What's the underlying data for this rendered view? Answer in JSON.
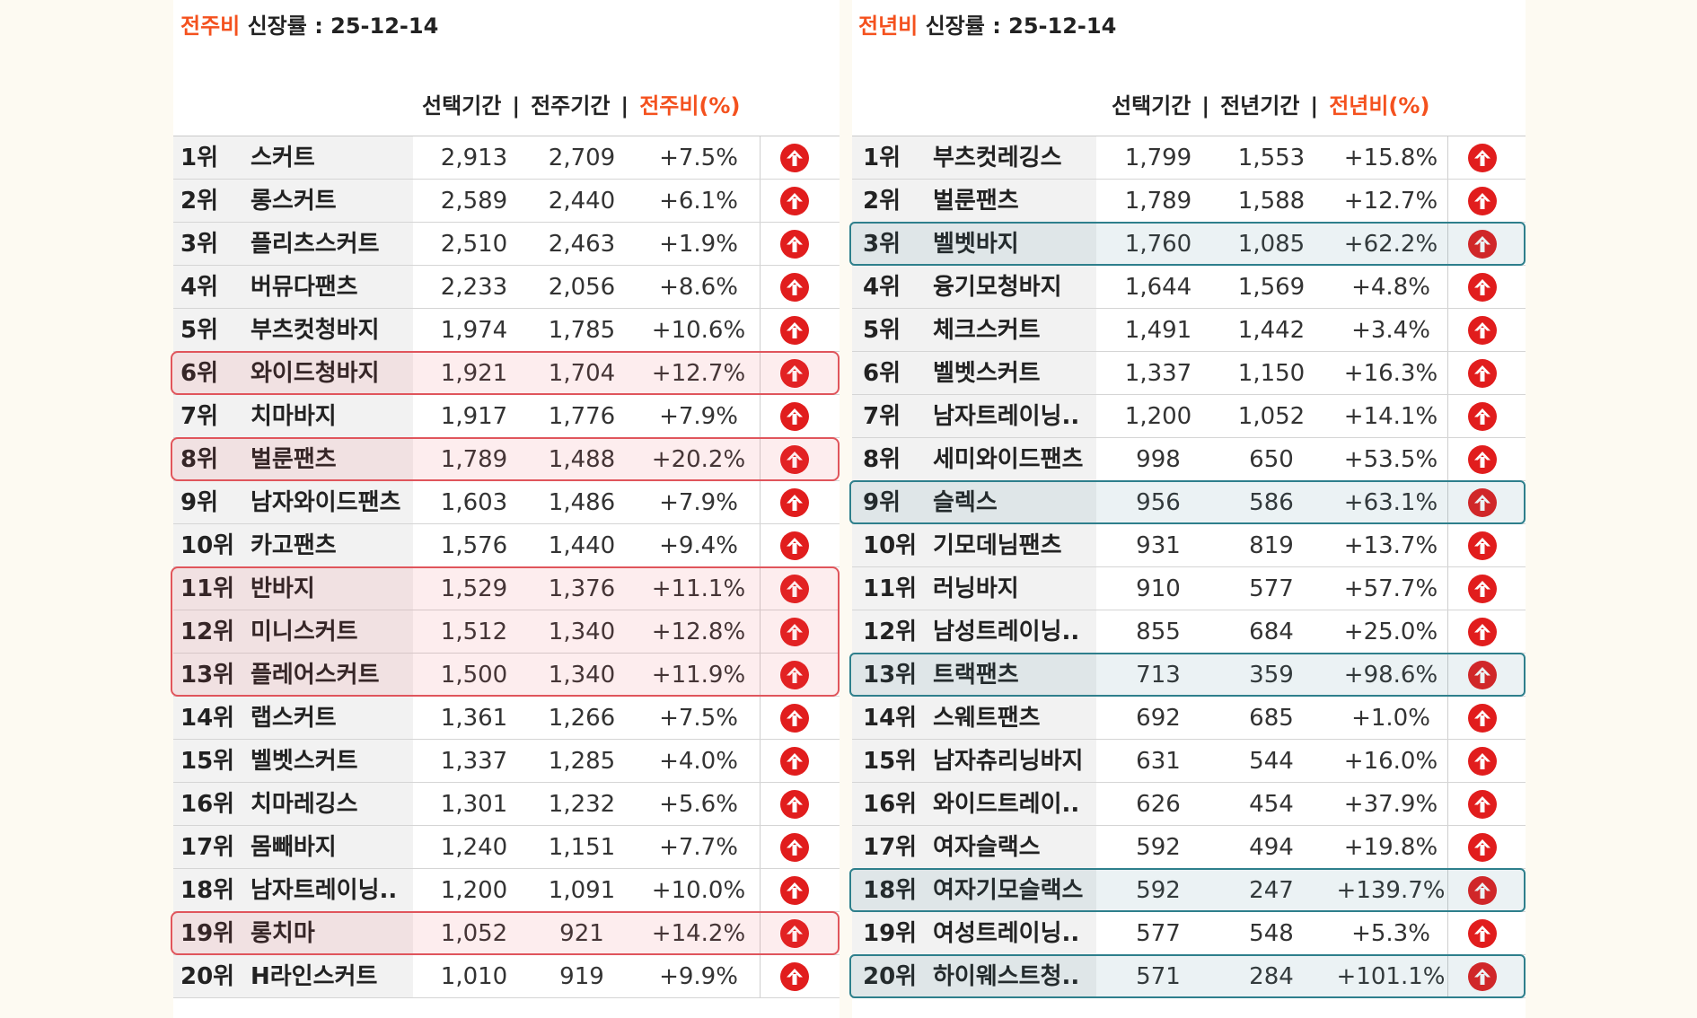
{
  "left": {
    "title_accent": "전주비",
    "title_text": " 신장률 : 25-12-14",
    "col_selected": "선택기간",
    "col_compare": "전주기간",
    "col_ratio": "전주비(%)",
    "sep": "|",
    "rows": [
      {
        "rank": "1위",
        "name": "스커트",
        "selected": "2,913",
        "compare": "2,709",
        "ratio": "+7.5%"
      },
      {
        "rank": "2위",
        "name": "롱스커트",
        "selected": "2,589",
        "compare": "2,440",
        "ratio": "+6.1%"
      },
      {
        "rank": "3위",
        "name": "플리츠스커트",
        "selected": "2,510",
        "compare": "2,463",
        "ratio": "+1.9%"
      },
      {
        "rank": "4위",
        "name": "버뮤다팬츠",
        "selected": "2,233",
        "compare": "2,056",
        "ratio": "+8.6%"
      },
      {
        "rank": "5위",
        "name": "부츠컷청바지",
        "selected": "1,974",
        "compare": "1,785",
        "ratio": "+10.6%"
      },
      {
        "rank": "6위",
        "name": "와이드청바지",
        "selected": "1,921",
        "compare": "1,704",
        "ratio": "+12.7%"
      },
      {
        "rank": "7위",
        "name": "치마바지",
        "selected": "1,917",
        "compare": "1,776",
        "ratio": "+7.9%"
      },
      {
        "rank": "8위",
        "name": "벌룬팬츠",
        "selected": "1,789",
        "compare": "1,488",
        "ratio": "+20.2%"
      },
      {
        "rank": "9위",
        "name": "남자와이드팬츠",
        "selected": "1,603",
        "compare": "1,486",
        "ratio": "+7.9%"
      },
      {
        "rank": "10위",
        "name": "카고팬츠",
        "selected": "1,576",
        "compare": "1,440",
        "ratio": "+9.4%"
      },
      {
        "rank": "11위",
        "name": "반바지",
        "selected": "1,529",
        "compare": "1,376",
        "ratio": "+11.1%"
      },
      {
        "rank": "12위",
        "name": "미니스커트",
        "selected": "1,512",
        "compare": "1,340",
        "ratio": "+12.8%"
      },
      {
        "rank": "13위",
        "name": "플레어스커트",
        "selected": "1,500",
        "compare": "1,340",
        "ratio": "+11.9%"
      },
      {
        "rank": "14위",
        "name": "랩스커트",
        "selected": "1,361",
        "compare": "1,266",
        "ratio": "+7.5%"
      },
      {
        "rank": "15위",
        "name": "벨벳스커트",
        "selected": "1,337",
        "compare": "1,285",
        "ratio": "+4.0%"
      },
      {
        "rank": "16위",
        "name": "치마레깅스",
        "selected": "1,301",
        "compare": "1,232",
        "ratio": "+5.6%"
      },
      {
        "rank": "17위",
        "name": "몸빼바지",
        "selected": "1,240",
        "compare": "1,151",
        "ratio": "+7.7%"
      },
      {
        "rank": "18위",
        "name": "남자트레이닝..",
        "selected": "1,200",
        "compare": "1,091",
        "ratio": "+10.0%"
      },
      {
        "rank": "19위",
        "name": "롱치마",
        "selected": "1,052",
        "compare": "921",
        "ratio": "+14.2%"
      },
      {
        "rank": "20위",
        "name": "H라인스커트",
        "selected": "1,010",
        "compare": "919",
        "ratio": "+9.9%"
      }
    ],
    "highlighted_ranks": [
      "6위",
      "8위",
      "11위",
      "12위",
      "13위",
      "19위"
    ]
  },
  "right": {
    "title_accent": "전년비",
    "title_text": " 신장률 : 25-12-14",
    "col_selected": "선택기간",
    "col_compare": "전년기간",
    "col_ratio": "전년비(%)",
    "sep": "|",
    "rows": [
      {
        "rank": "1위",
        "name": "부츠컷레깅스",
        "selected": "1,799",
        "compare": "1,553",
        "ratio": "+15.8%"
      },
      {
        "rank": "2위",
        "name": "벌룬팬츠",
        "selected": "1,789",
        "compare": "1,588",
        "ratio": "+12.7%"
      },
      {
        "rank": "3위",
        "name": "벨벳바지",
        "selected": "1,760",
        "compare": "1,085",
        "ratio": "+62.2%"
      },
      {
        "rank": "4위",
        "name": "융기모청바지",
        "selected": "1,644",
        "compare": "1,569",
        "ratio": "+4.8%"
      },
      {
        "rank": "5위",
        "name": "체크스커트",
        "selected": "1,491",
        "compare": "1,442",
        "ratio": "+3.4%"
      },
      {
        "rank": "6위",
        "name": "벨벳스커트",
        "selected": "1,337",
        "compare": "1,150",
        "ratio": "+16.3%"
      },
      {
        "rank": "7위",
        "name": "남자트레이닝..",
        "selected": "1,200",
        "compare": "1,052",
        "ratio": "+14.1%"
      },
      {
        "rank": "8위",
        "name": "세미와이드팬츠",
        "selected": "998",
        "compare": "650",
        "ratio": "+53.5%"
      },
      {
        "rank": "9위",
        "name": "슬렉스",
        "selected": "956",
        "compare": "586",
        "ratio": "+63.1%"
      },
      {
        "rank": "10위",
        "name": "기모데님팬츠",
        "selected": "931",
        "compare": "819",
        "ratio": "+13.7%"
      },
      {
        "rank": "11위",
        "name": "러닝바지",
        "selected": "910",
        "compare": "577",
        "ratio": "+57.7%"
      },
      {
        "rank": "12위",
        "name": "남성트레이닝..",
        "selected": "855",
        "compare": "684",
        "ratio": "+25.0%"
      },
      {
        "rank": "13위",
        "name": "트랙팬츠",
        "selected": "713",
        "compare": "359",
        "ratio": "+98.6%"
      },
      {
        "rank": "14위",
        "name": "스웨트팬츠",
        "selected": "692",
        "compare": "685",
        "ratio": "+1.0%"
      },
      {
        "rank": "15위",
        "name": "남자츄리닝바지",
        "selected": "631",
        "compare": "544",
        "ratio": "+16.0%"
      },
      {
        "rank": "16위",
        "name": "와이드트레이..",
        "selected": "626",
        "compare": "454",
        "ratio": "+37.9%"
      },
      {
        "rank": "17위",
        "name": "여자슬랙스",
        "selected": "592",
        "compare": "494",
        "ratio": "+19.8%"
      },
      {
        "rank": "18위",
        "name": "여자기모슬랙스",
        "selected": "592",
        "compare": "247",
        "ratio": "+139.7%"
      },
      {
        "rank": "19위",
        "name": "여성트레이닝..",
        "selected": "577",
        "compare": "548",
        "ratio": "+5.3%"
      },
      {
        "rank": "20위",
        "name": "하이웨스트청..",
        "selected": "571",
        "compare": "284",
        "ratio": "+101.1%"
      }
    ],
    "highlighted_ranks": [
      "3위",
      "9위",
      "13위",
      "18위",
      "20위"
    ]
  },
  "trend_icon": "arrow-up-circle-icon",
  "colors": {
    "accent": "#f4511e",
    "arrow": "#e11d1d",
    "highlight_red": "#e0555c",
    "highlight_teal": "#2e7f8c"
  }
}
